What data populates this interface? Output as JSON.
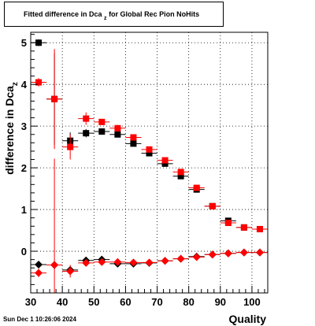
{
  "header": {
    "title_main": "Fitted difference in Dca",
    "title_sub": "z",
    "title_rest": " for Global Rec Pion NoHits"
  },
  "footer": {
    "timestamp": "Sun Dec  1 10:26:06 2024"
  },
  "chart_data": {
    "type": "scatter",
    "title": "Fitted difference in Dca_z for Global Rec Pion NoHits",
    "xlabel": "Quality",
    "ylabel": "difference in Dca",
    "ylabel_sub": "z",
    "xlim": [
      30,
      105
    ],
    "ylim": [
      -1.0,
      5.25
    ],
    "xticks": [
      30,
      40,
      50,
      60,
      70,
      80,
      90,
      100
    ],
    "yticks": [
      0,
      1,
      2,
      3,
      4,
      5
    ],
    "grid": true,
    "marker_colors": {
      "black": "#000000",
      "red": "#ff0000"
    },
    "series": [
      {
        "color": "#000000",
        "marker": "square",
        "x": [
          32.5,
          37.5,
          42.5,
          47.5,
          52.5,
          57.5,
          62.5,
          67.5,
          72.5,
          77.5,
          82.5,
          87.5,
          92.5,
          97.5,
          102.5
        ],
        "y": [
          5.0,
          3.65,
          2.65,
          2.83,
          2.87,
          2.8,
          2.58,
          2.35,
          2.1,
          1.8,
          1.48,
          1.08,
          0.73,
          0.57,
          0.53
        ],
        "yerr": [
          0.08,
          1.1,
          0.2,
          0.1,
          0.05,
          0.05,
          0.05,
          0.05,
          0.05,
          0.04,
          0.04,
          0.04,
          0.04,
          0.04,
          0.04
        ]
      },
      {
        "color": "#ff0000",
        "marker": "square",
        "x": [
          32.5,
          37.5,
          42.5,
          47.5,
          52.5,
          57.5,
          62.5,
          67.5,
          72.5,
          77.5,
          82.5,
          87.5,
          92.5,
          97.5,
          102.5
        ],
        "y": [
          4.05,
          3.65,
          2.5,
          3.18,
          3.1,
          2.95,
          2.73,
          2.44,
          2.18,
          1.9,
          1.52,
          1.08,
          0.68,
          0.57,
          0.53
        ],
        "yerr": [
          0.1,
          1.2,
          0.3,
          0.15,
          0.05,
          0.08,
          0.07,
          0.05,
          0.05,
          0.05,
          0.04,
          0.04,
          0.04,
          0.04,
          0.04
        ]
      },
      {
        "color": "#000000",
        "marker": "diamond",
        "x": [
          32.5,
          37.5,
          42.5,
          47.5,
          52.5,
          57.5,
          62.5,
          67.5,
          72.5,
          77.5,
          82.5,
          87.5,
          92.5,
          97.5,
          102.5
        ],
        "y": [
          -0.32,
          -0.33,
          -0.45,
          -0.22,
          -0.2,
          -0.3,
          -0.3,
          -0.28,
          -0.23,
          -0.18,
          -0.13,
          -0.08,
          -0.05,
          -0.03,
          -0.03
        ],
        "yerr": [
          0.05,
          0.1,
          0.1,
          0.08,
          0.04,
          0.04,
          0.04,
          0.03,
          0.03,
          0.03,
          0.03,
          0.03,
          0.03,
          0.03,
          0.03
        ]
      },
      {
        "color": "#ff0000",
        "marker": "diamond",
        "x": [
          32.5,
          37.5,
          42.5,
          47.5,
          52.5,
          57.5,
          62.5,
          67.5,
          72.5,
          77.5,
          82.5,
          87.5,
          92.5,
          97.5,
          102.5
        ],
        "y": [
          -0.52,
          -0.33,
          -0.48,
          -0.28,
          -0.26,
          -0.26,
          -0.27,
          -0.27,
          -0.23,
          -0.18,
          -0.14,
          -0.08,
          -0.05,
          -0.03,
          -0.03
        ],
        "yerr": [
          0.1,
          2.55,
          0.15,
          0.05,
          0.04,
          0.04,
          0.04,
          0.03,
          0.03,
          0.03,
          0.03,
          0.03,
          0.03,
          0.03,
          0.03
        ]
      }
    ]
  }
}
